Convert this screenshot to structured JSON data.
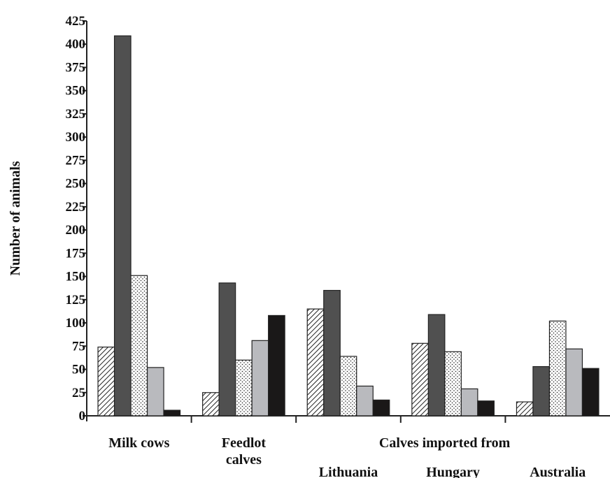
{
  "chart_data": {
    "type": "bar",
    "ylabel": "Number of animals",
    "ylim": [
      0,
      425
    ],
    "ytick_step": 25,
    "yticks": [
      "0",
      "25",
      "50",
      "75",
      "100",
      "125",
      "150",
      "175",
      "200",
      "225",
      "250",
      "275",
      "300",
      "325",
      "350",
      "375",
      "400",
      "425"
    ],
    "categories": [
      "Milk cows",
      "Feedlot calves",
      "Lithuania",
      "Hungary",
      "Australia"
    ],
    "category_labels": [
      [
        "Milk cows"
      ],
      [
        "Feedlot",
        "calves"
      ],
      [
        "Lithuania"
      ],
      [
        "Hungary"
      ],
      [
        "Australia"
      ]
    ],
    "group_header": "Calves imported from",
    "series": [
      {
        "values": [
          74,
          25,
          115,
          78,
          15
        ],
        "pattern": "hatch",
        "color": "#ffffff"
      },
      {
        "values": [
          409,
          143,
          135,
          109,
          53
        ],
        "pattern": "solid",
        "color": "#505050"
      },
      {
        "values": [
          151,
          60,
          64,
          69,
          102
        ],
        "pattern": "dots",
        "color": "#ffffff"
      },
      {
        "values": [
          52,
          81,
          32,
          29,
          72
        ],
        "pattern": "solid",
        "color": "#b9babe"
      },
      {
        "values": [
          6,
          108,
          17,
          16,
          51
        ],
        "pattern": "solid",
        "color": "#1a1818"
      }
    ],
    "grid": false,
    "legend": "none"
  }
}
